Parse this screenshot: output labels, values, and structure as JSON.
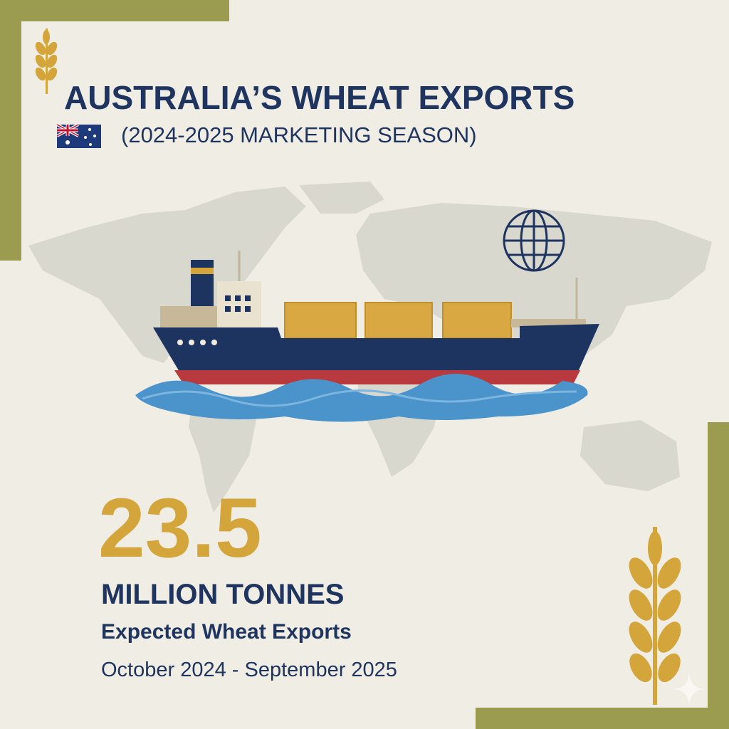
{
  "header": {
    "title": "AUSTRALIA’S WHEAT EXPORTS",
    "subtitle": "(2024-2025 MARKETING SEASON)"
  },
  "stat": {
    "value": 23.5,
    "unit": "MILLION TONNES",
    "label": "Expected Wheat Exports",
    "period": "October 2024 - September 2025"
  }
}
